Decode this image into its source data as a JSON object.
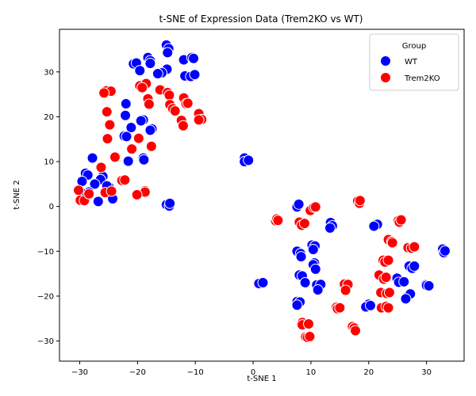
{
  "chart_data": {
    "type": "scatter",
    "title": "t-SNE of Expression Data (Trem2KO vs WT)",
    "xlabel": "t-SNE 1",
    "ylabel": "t-SNE 2",
    "xlim": [
      -33.5,
      36.5
    ],
    "ylim": [
      -34.5,
      39.5
    ],
    "xticks": [
      -30,
      -20,
      -10,
      0,
      10,
      20,
      30
    ],
    "yticks": [
      -30,
      -20,
      -10,
      0,
      10,
      20,
      30
    ],
    "grid": false,
    "legend": {
      "title": "Group",
      "placement": "top-right",
      "entries": [
        {
          "label": "WT",
          "color": "#0000ff"
        },
        {
          "label": "Trem2KO",
          "color": "#ff0000"
        }
      ]
    },
    "series": [
      {
        "name": "WT",
        "color": "#0000ff",
        "points": [
          [
            -15.0,
            36.0
          ],
          [
            -14.6,
            35.2
          ],
          [
            -14.8,
            34.3
          ],
          [
            -18.2,
            33.2
          ],
          [
            -17.8,
            32.5
          ],
          [
            -20.7,
            31.8
          ],
          [
            -20.2,
            32.0
          ],
          [
            -17.8,
            31.9
          ],
          [
            -19.6,
            30.3
          ],
          [
            -14.9,
            30.6
          ],
          [
            -15.8,
            29.8
          ],
          [
            -16.5,
            29.6
          ],
          [
            -12.0,
            32.7
          ],
          [
            -10.6,
            33.2
          ],
          [
            -10.3,
            33.0
          ],
          [
            -11.8,
            29.1
          ],
          [
            -10.8,
            29.0
          ],
          [
            -10.1,
            29.4
          ],
          [
            -22.0,
            22.9
          ],
          [
            -22.1,
            20.3
          ],
          [
            -19.0,
            19.3
          ],
          [
            -19.4,
            19.1
          ],
          [
            -21.1,
            17.6
          ],
          [
            -17.5,
            17.3
          ],
          [
            -17.8,
            17.0
          ],
          [
            -22.3,
            15.7
          ],
          [
            -21.9,
            15.6
          ],
          [
            -19.0,
            10.8
          ],
          [
            -18.9,
            10.4
          ],
          [
            -21.6,
            10.1
          ],
          [
            -27.8,
            10.8
          ],
          [
            -29.0,
            7.4
          ],
          [
            -28.6,
            7.0
          ],
          [
            -26.0,
            6.7
          ],
          [
            -29.6,
            5.6
          ],
          [
            -26.4,
            6.0
          ],
          [
            -27.4,
            5.0
          ],
          [
            -24.9,
            4.3
          ],
          [
            -25.3,
            4.6
          ],
          [
            -28.4,
            3.2
          ],
          [
            -29.4,
            2.8
          ],
          [
            -24.3,
            1.7
          ],
          [
            -26.8,
            1.1
          ],
          [
            -15.0,
            0.4
          ],
          [
            -14.5,
            0.1
          ],
          [
            -14.4,
            0.7
          ],
          [
            -1.5,
            10.8
          ],
          [
            -1.5,
            10.0
          ],
          [
            -0.8,
            10.3
          ],
          [
            1.0,
            -17.2
          ],
          [
            1.7,
            -17.0
          ],
          [
            7.6,
            -0.1
          ],
          [
            7.9,
            0.5
          ],
          [
            7.6,
            -10.0
          ],
          [
            8.2,
            -10.5
          ],
          [
            8.3,
            -11.2
          ],
          [
            10.2,
            -8.6
          ],
          [
            10.7,
            -8.8
          ],
          [
            10.4,
            -9.6
          ],
          [
            13.4,
            -3.6
          ],
          [
            13.7,
            -4.3
          ],
          [
            13.3,
            -4.8
          ],
          [
            8.0,
            -15.3
          ],
          [
            8.5,
            -15.5
          ],
          [
            10.6,
            -12.6
          ],
          [
            10.4,
            -13.0
          ],
          [
            10.8,
            -14.0
          ],
          [
            9.0,
            -17.0
          ],
          [
            11.0,
            -17.5
          ],
          [
            11.7,
            -17.4
          ],
          [
            11.2,
            -18.6
          ],
          [
            7.6,
            -21.2
          ],
          [
            8.1,
            -21.3
          ],
          [
            7.6,
            -22.0
          ],
          [
            20.0,
            -21.8
          ],
          [
            19.5,
            -22.4
          ],
          [
            20.3,
            -22.1
          ],
          [
            21.2,
            -4.2
          ],
          [
            21.5,
            -4.0
          ],
          [
            20.9,
            -4.4
          ],
          [
            22.4,
            -16.0
          ],
          [
            24.9,
            -16.0
          ],
          [
            25.2,
            -16.9
          ],
          [
            26.1,
            -16.8
          ],
          [
            26.7,
            -20.1
          ],
          [
            27.2,
            -19.5
          ],
          [
            26.4,
            -20.6
          ],
          [
            27.0,
            -13.3
          ],
          [
            27.5,
            -13.8
          ],
          [
            27.9,
            -13.3
          ],
          [
            29.9,
            -17.4
          ],
          [
            30.0,
            -17.6
          ],
          [
            30.4,
            -17.7
          ],
          [
            32.8,
            -9.5
          ],
          [
            33.0,
            -10.3
          ],
          [
            33.2,
            -9.9
          ]
        ]
      },
      {
        "name": "Trem2KO",
        "color": "#ff0000",
        "points": [
          [
            -25.4,
            25.8
          ],
          [
            -24.6,
            25.7
          ],
          [
            -25.8,
            25.3
          ],
          [
            -19.6,
            26.9
          ],
          [
            -18.5,
            27.4
          ],
          [
            -19.2,
            26.5
          ],
          [
            -16.1,
            26.0
          ],
          [
            -14.8,
            25.4
          ],
          [
            -14.5,
            24.8
          ],
          [
            -18.2,
            24.0
          ],
          [
            -18.0,
            22.8
          ],
          [
            -14.4,
            22.7
          ],
          [
            -13.9,
            21.8
          ],
          [
            -12.0,
            24.2
          ],
          [
            -11.6,
            22.9
          ],
          [
            -11.3,
            23.0
          ],
          [
            -13.5,
            21.3
          ],
          [
            -12.4,
            19.2
          ],
          [
            -12.1,
            18.0
          ],
          [
            -9.4,
            20.7
          ],
          [
            -8.9,
            19.4
          ],
          [
            -9.4,
            19.3
          ],
          [
            -25.3,
            21.1
          ],
          [
            -24.8,
            18.2
          ],
          [
            -25.2,
            15.1
          ],
          [
            -19.8,
            15.2
          ],
          [
            -17.6,
            13.4
          ],
          [
            -21.0,
            12.8
          ],
          [
            -23.9,
            11.0
          ],
          [
            -22.7,
            5.8
          ],
          [
            -22.2,
            5.9
          ],
          [
            -26.3,
            8.7
          ],
          [
            -30.2,
            3.6
          ],
          [
            -29.9,
            1.4
          ],
          [
            -29.2,
            1.3
          ],
          [
            -28.4,
            2.8
          ],
          [
            -25.6,
            3.1
          ],
          [
            -24.5,
            3.4
          ],
          [
            -18.7,
            3.5
          ],
          [
            -18.7,
            3.2
          ],
          [
            -20.1,
            2.6
          ],
          [
            3.9,
            -3.2
          ],
          [
            4.1,
            -2.8
          ],
          [
            4.3,
            -3.1
          ],
          [
            8.0,
            -3.5
          ],
          [
            8.4,
            -4.2
          ],
          [
            8.9,
            -3.8
          ],
          [
            9.9,
            -0.9
          ],
          [
            10.5,
            -0.2
          ],
          [
            10.8,
            -0.1
          ],
          [
            18.1,
            1.2
          ],
          [
            18.4,
            0.7
          ],
          [
            18.5,
            1.3
          ],
          [
            23.4,
            -7.4
          ],
          [
            24.0,
            -7.8
          ],
          [
            24.1,
            -8.1
          ],
          [
            25.1,
            -3.2
          ],
          [
            25.3,
            -3.5
          ],
          [
            25.6,
            -3.0
          ],
          [
            26.8,
            -9.2
          ],
          [
            27.4,
            -9.3
          ],
          [
            27.9,
            -9.0
          ],
          [
            22.5,
            -12.0
          ],
          [
            22.8,
            -12.4
          ],
          [
            23.4,
            -12.0
          ],
          [
            21.8,
            -15.3
          ],
          [
            22.6,
            -16.2
          ],
          [
            23.0,
            -15.8
          ],
          [
            22.1,
            -19.2
          ],
          [
            23.1,
            -19.4
          ],
          [
            23.6,
            -19.2
          ],
          [
            22.2,
            -22.6
          ],
          [
            23.0,
            -22.3
          ],
          [
            23.4,
            -22.6
          ],
          [
            15.8,
            -17.3
          ],
          [
            16.4,
            -17.4
          ],
          [
            16.0,
            -18.7
          ],
          [
            14.4,
            -22.5
          ],
          [
            14.6,
            -22.8
          ],
          [
            15.0,
            -22.6
          ],
          [
            17.2,
            -26.8
          ],
          [
            17.5,
            -27.1
          ],
          [
            17.7,
            -27.7
          ],
          [
            8.5,
            -25.9
          ],
          [
            8.5,
            -26.4
          ],
          [
            9.6,
            -26.2
          ],
          [
            9.1,
            -29.1
          ],
          [
            9.4,
            -29.2
          ],
          [
            9.8,
            -29.0
          ]
        ]
      }
    ]
  }
}
